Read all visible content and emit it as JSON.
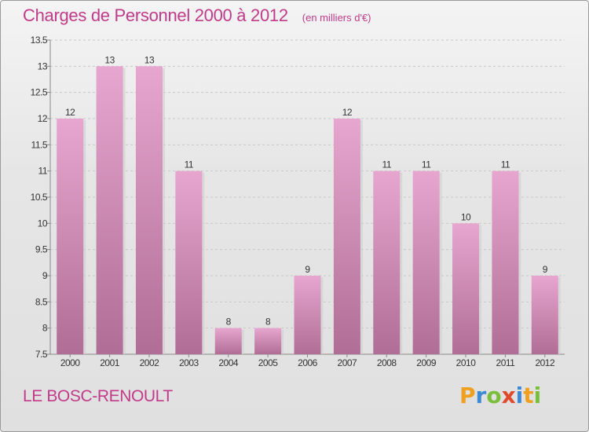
{
  "title": "Charges de Personnel 2000 à 2012",
  "unit": "(en milliers d'€)",
  "commune": "LE BOSC-RENOULT",
  "logo": {
    "letters": [
      "P",
      "r",
      "o",
      "x",
      "i",
      "t",
      "i"
    ],
    "colors": [
      "#f0a020",
      "#3a8ad6",
      "#7abf3a",
      "#e04a2a",
      "#3a8ad6",
      "#f0a020",
      "#7abf3a"
    ]
  },
  "colors": {
    "bar_top": "#e7a6cf",
    "bar_bottom": "#b06e96",
    "text_accent": "#c23a8a"
  },
  "chart_data": {
    "type": "bar",
    "categories": [
      "2000",
      "2001",
      "2002",
      "2003",
      "2004",
      "2005",
      "2006",
      "2007",
      "2008",
      "2009",
      "2010",
      "2011",
      "2012"
    ],
    "values": [
      12,
      13,
      13,
      11,
      8,
      8,
      9,
      12,
      11,
      11,
      10,
      11,
      9
    ],
    "data_labels": [
      "12",
      "13",
      "13",
      "11",
      "8",
      "8",
      "9",
      "12",
      "11",
      "11",
      "10",
      "11",
      "9"
    ],
    "title": "Charges de Personnel 2000 à 2012",
    "xlabel": "",
    "ylabel": "",
    "ylim": [
      7.5,
      13.5
    ],
    "yticks": [
      7.5,
      8,
      8.5,
      9,
      9.5,
      10,
      10.5,
      11,
      11.5,
      12,
      12.5,
      13,
      13.5
    ],
    "ytick_labels": [
      "7.5",
      "8",
      "8.5",
      "9",
      "9.5",
      "10",
      "10.5",
      "11",
      "11.5",
      "12",
      "12.5",
      "13",
      "13.5"
    ],
    "grid": true
  }
}
